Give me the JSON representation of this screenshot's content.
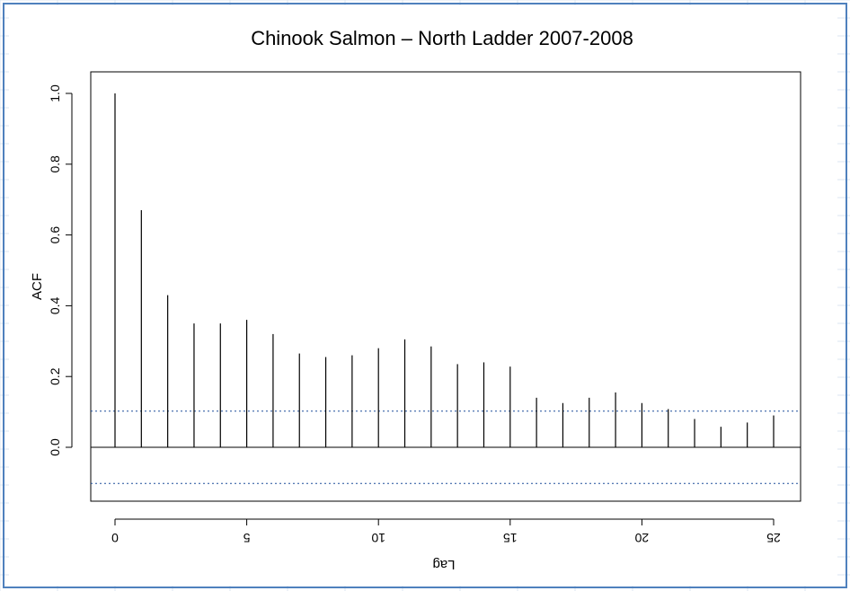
{
  "chart_data": {
    "type": "bar",
    "title": "Chinook Salmon – North Ladder 2007-2008",
    "xlabel": "Lag",
    "ylabel": "ACF",
    "x": [
      0,
      1,
      2,
      3,
      4,
      5,
      6,
      7,
      8,
      9,
      10,
      11,
      12,
      13,
      14,
      15,
      16,
      17,
      18,
      19,
      20,
      21,
      22,
      23,
      24,
      25
    ],
    "values": [
      1.0,
      0.67,
      0.43,
      0.35,
      0.35,
      0.36,
      0.32,
      0.265,
      0.255,
      0.26,
      0.28,
      0.305,
      0.285,
      0.235,
      0.24,
      0.228,
      0.14,
      0.125,
      0.14,
      0.155,
      0.125,
      0.108,
      0.08,
      0.058,
      0.07,
      0.09
    ],
    "confidence_bound": 0.102,
    "xlim": [
      0,
      25
    ],
    "ylim": [
      -0.14,
      1.0
    ],
    "xticks": [
      0,
      5,
      10,
      15,
      20,
      25
    ],
    "xtick_labels": [
      "0",
      "5",
      "10",
      "15",
      "20",
      "25"
    ],
    "yticks": [
      0.0,
      0.2,
      0.4,
      0.6,
      0.8,
      1.0
    ],
    "ytick_labels": [
      "0.0",
      "0.2",
      "0.4",
      "0.6",
      "0.8",
      "1.0"
    ],
    "colors": {
      "bars": "#000000",
      "confidence_line": "#1f4e9a",
      "frame_border": "#4f81bd",
      "grid_background": "#dbe5f1"
    }
  }
}
